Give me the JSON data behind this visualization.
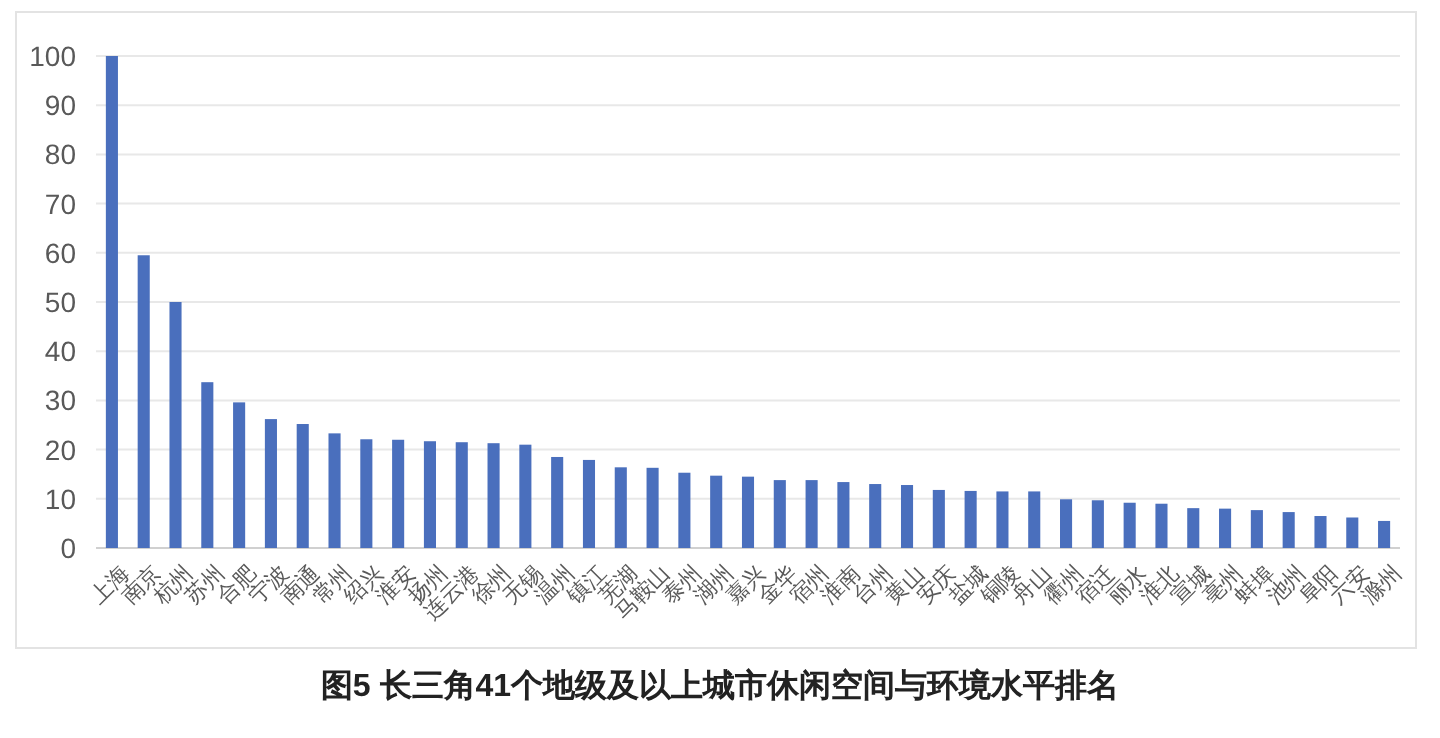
{
  "chart_data": {
    "type": "bar",
    "title": "图5  长三角41个地级及以上城市休闲空间与环境水平排名",
    "categories": [
      "上海",
      "南京",
      "杭州",
      "苏州",
      "合肥",
      "宁波",
      "南通",
      "常州",
      "绍兴",
      "淮安",
      "扬州",
      "连云港",
      "徐州",
      "无锡",
      "温州",
      "镇江",
      "芜湖",
      "马鞍山",
      "泰州",
      "湖州",
      "嘉兴",
      "金华",
      "宿州",
      "淮南",
      "台州",
      "黄山",
      "安庆",
      "盐城",
      "铜陵",
      "舟山",
      "衢州",
      "宿迁",
      "丽水",
      "淮北",
      "宣城",
      "亳州",
      "蚌埠",
      "池州",
      "阜阳",
      "六安",
      "滁州"
    ],
    "values": [
      100,
      59.5,
      50,
      33.7,
      29.6,
      26.2,
      25.2,
      23.3,
      22.1,
      22,
      21.7,
      21.5,
      21.3,
      21,
      18.5,
      17.9,
      16.4,
      16.3,
      15.3,
      14.7,
      14.5,
      13.8,
      13.8,
      13.4,
      13,
      12.8,
      11.8,
      11.6,
      11.5,
      11.5,
      9.9,
      9.7,
      9.2,
      9,
      8.1,
      8,
      7.7,
      7.3,
      6.5,
      6.2,
      5.5
    ],
    "color": "#4a6fbd",
    "ylim": [
      0,
      100
    ],
    "yticks": [
      0,
      10,
      20,
      30,
      40,
      50,
      60,
      70,
      80,
      90,
      100
    ],
    "grid": "y"
  }
}
